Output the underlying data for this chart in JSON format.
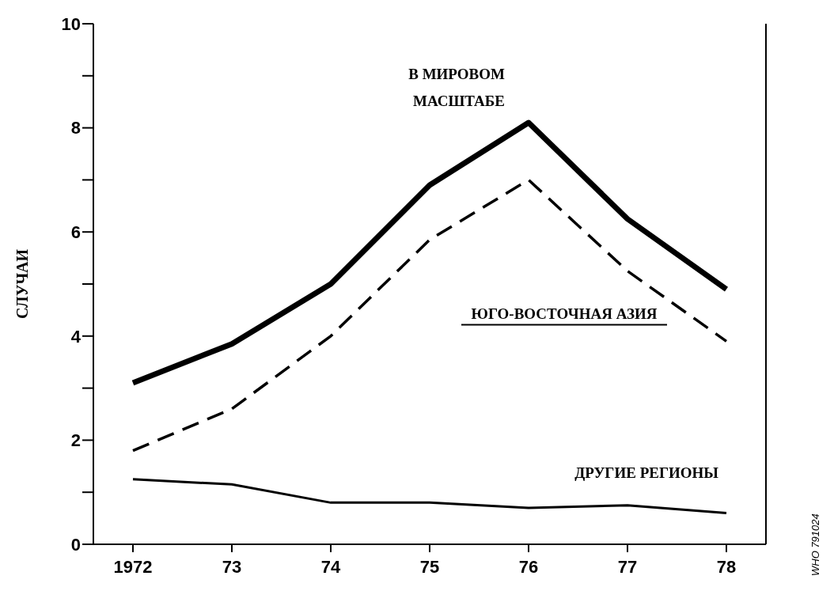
{
  "chart_data": {
    "type": "line",
    "ylabel": "СЛУЧАИ",
    "categories": [
      "1972",
      "73",
      "74",
      "75",
      "76",
      "77",
      "78"
    ],
    "series": [
      {
        "name": "В МИРОВОМ МАСШТАБЕ",
        "color": "#000000",
        "line_style": "solid",
        "values": [
          3.1,
          3.85,
          5.0,
          6.9,
          8.1,
          6.25,
          4.9
        ]
      },
      {
        "name": "ЮГО-ВОСТОЧНАЯ АЗИЯ",
        "color": "#000000",
        "line_style": "dashed",
        "values": [
          1.8,
          2.6,
          4.0,
          5.85,
          7.0,
          5.25,
          3.9
        ]
      },
      {
        "name": "ДРУГИЕ РЕГИОНЫ",
        "color": "#000000",
        "line_style": "solid",
        "values": [
          1.25,
          1.15,
          0.8,
          0.8,
          0.7,
          0.75,
          0.6
        ]
      }
    ],
    "ylim": [
      0,
      10
    ],
    "yticks": [
      0,
      {
        "value": 1,
        "label": null
      },
      2,
      {
        "value": 3,
        "label": null
      },
      4,
      {
        "value": 5,
        "label": null
      },
      6,
      {
        "value": 7,
        "label": null
      },
      8,
      {
        "value": 9,
        "label": null
      },
      10
    ],
    "grid": false,
    "legend": false,
    "marker": "none",
    "annotations": [
      "WHO 791024"
    ]
  }
}
